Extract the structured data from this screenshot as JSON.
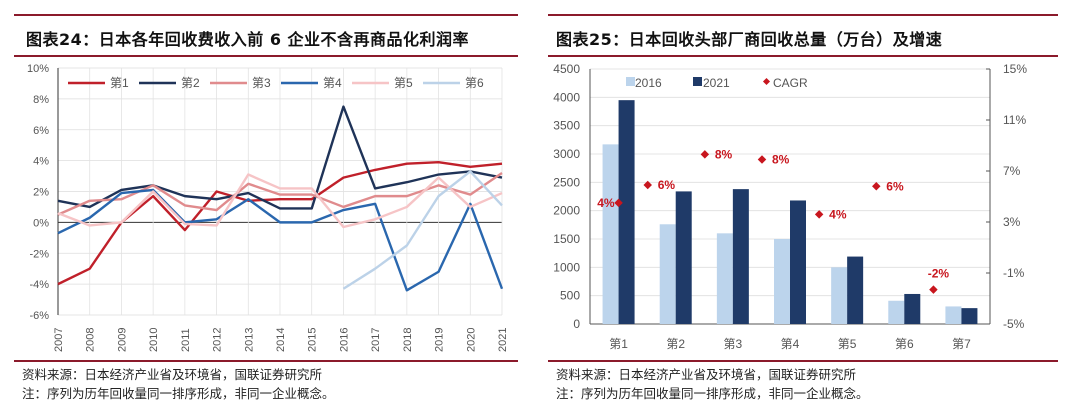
{
  "left": {
    "title": "图表24：日本各年回收费收入前 6 企业不含再商品化利润率",
    "source": "资料来源：日本经济产业省及环境省，国联证券研究所",
    "note": "注：序列为历年回收量同一排序形成，非同一企业概念。"
  },
  "right": {
    "title": "图表25：日本回收头部厂商回收总量（万台）及增速",
    "source": "资料来源：日本经济产业省及环境省，国联证券研究所",
    "note": "注：序列为历年回收量同一排序形成，非同一企业概念。"
  },
  "chart_data": [
    {
      "type": "line",
      "x": [
        "2007",
        "2008",
        "2009",
        "2010",
        "2011",
        "2012",
        "2013",
        "2014",
        "2015",
        "2016",
        "2017",
        "2018",
        "2019",
        "2020",
        "2021"
      ],
      "ylim": [
        -6,
        10
      ],
      "yticks": [
        "10%",
        "8%",
        "6%",
        "4%",
        "2%",
        "0%",
        "-2%",
        "-4%",
        "-6%"
      ],
      "grid": true,
      "legend": "top",
      "series": [
        {
          "name": "第1",
          "color": "#c0202a",
          "values": [
            -4.0,
            -3.0,
            0.0,
            1.7,
            -0.5,
            2.0,
            1.4,
            1.5,
            1.5,
            2.9,
            3.4,
            3.8,
            3.9,
            3.6,
            3.8
          ]
        },
        {
          "name": "第2",
          "color": "#1f3358",
          "values": [
            1.4,
            1.0,
            2.1,
            2.4,
            1.7,
            1.5,
            1.9,
            0.9,
            0.9,
            7.5,
            2.2,
            2.6,
            3.1,
            3.3,
            2.9
          ]
        },
        {
          "name": "第3",
          "color": "#e08b8d",
          "values": [
            0.5,
            1.4,
            1.5,
            2.4,
            1.1,
            0.8,
            2.5,
            1.8,
            1.8,
            1.0,
            1.7,
            1.7,
            2.4,
            1.8,
            3.2
          ]
        },
        {
          "name": "第4",
          "color": "#2a67ae",
          "values": [
            -0.7,
            0.3,
            1.9,
            2.1,
            0.0,
            0.2,
            1.5,
            0.0,
            0.0,
            0.8,
            1.2,
            -4.4,
            -3.2,
            1.2,
            -4.3
          ]
        },
        {
          "name": "第5",
          "color": "#f6c4c6",
          "values": [
            0.6,
            -0.2,
            0.0,
            2.0,
            -0.1,
            -0.2,
            3.1,
            2.2,
            2.2,
            -0.3,
            0.2,
            1.0,
            2.9,
            1.0,
            1.9
          ]
        },
        {
          "name": "第6",
          "color": "#bcd2e8",
          "values": [
            null,
            null,
            null,
            null,
            null,
            null,
            null,
            null,
            null,
            -4.3,
            -3.0,
            -1.5,
            1.7,
            3.3,
            1.1
          ]
        }
      ]
    },
    {
      "type": "bar",
      "categories": [
        "第1",
        "第2",
        "第3",
        "第4",
        "第5",
        "第6",
        "第7"
      ],
      "ylim": [
        0,
        4500
      ],
      "yticks": [
        "4500",
        "4000",
        "3500",
        "3000",
        "2500",
        "2000",
        "1500",
        "1000",
        "500",
        "0"
      ],
      "y2lim": [
        -5,
        15
      ],
      "y2ticks": [
        "15%",
        "11%",
        "7%",
        "3%",
        "-1%",
        "-5%"
      ],
      "grid": true,
      "legend": "top-left",
      "series": [
        {
          "name": "2016",
          "color": "#bcd4ec",
          "values": [
            3170,
            1760,
            1600,
            1500,
            1000,
            410,
            310
          ]
        },
        {
          "name": "2021",
          "color": "#1f3a68",
          "values": [
            3950,
            2340,
            2380,
            2180,
            1190,
            530,
            280
          ]
        },
        {
          "name": "CAGR",
          "color": "#c8161e",
          "axis": "right",
          "values": [
            4.5,
            5.9,
            8.3,
            7.9,
            3.6,
            5.8,
            -2.3
          ],
          "labels": [
            "4%",
            "6%",
            "8%",
            "8%",
            "4%",
            "6%",
            "-2%"
          ]
        }
      ]
    }
  ]
}
